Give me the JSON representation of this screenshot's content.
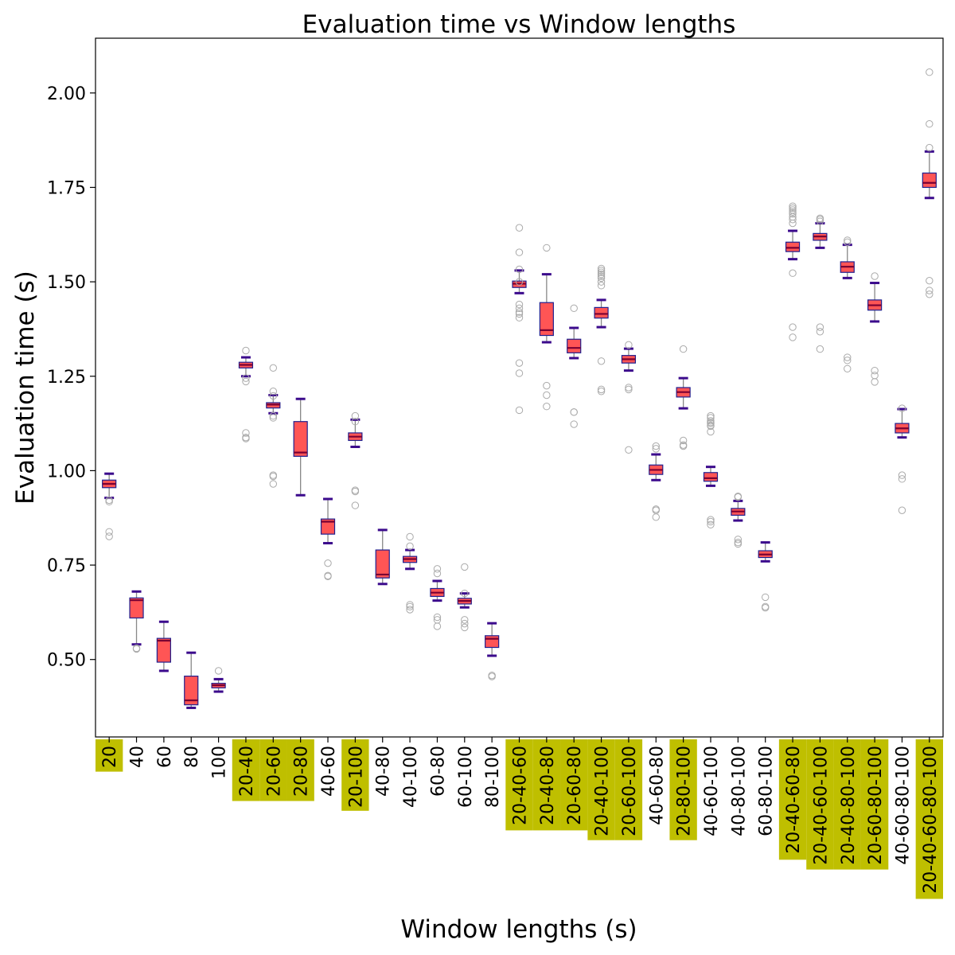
{
  "chart_data": {
    "type": "box",
    "title": "Evaluation time vs Window lengths",
    "xlabel": "Window lengths (s)",
    "ylabel": "Evaluation time (s)",
    "ylim": [
      0.295,
      2.145
    ],
    "yticks": [
      0.5,
      0.75,
      1.0,
      1.25,
      1.5,
      1.75,
      2.0
    ],
    "ytick_labels": [
      "0.50",
      "0.75",
      "1.00",
      "1.25",
      "1.50",
      "1.75",
      "2.00"
    ],
    "grid": false,
    "colors": {
      "box_fill": "#ff5555",
      "box_edge": "#1f1f8f",
      "median": "#7a0033",
      "whisker": "#888888",
      "cap": "#3b0a8c",
      "outlier": "#aaaaaa",
      "highlight": "#bfbf00"
    },
    "categories": [
      "20",
      "40",
      "60",
      "80",
      "100",
      "20-40",
      "20-60",
      "20-80",
      "40-60",
      "20-100",
      "40-80",
      "40-100",
      "60-80",
      "60-100",
      "80-100",
      "20-40-60",
      "20-40-80",
      "20-60-80",
      "20-40-100",
      "20-60-100",
      "40-60-80",
      "20-80-100",
      "40-60-100",
      "40-80-100",
      "60-80-100",
      "20-40-60-80",
      "20-40-60-100",
      "20-40-80-100",
      "20-60-80-100",
      "40-60-80-100",
      "20-40-60-80-100"
    ],
    "highlighted": [
      true,
      false,
      false,
      false,
      false,
      true,
      true,
      true,
      false,
      true,
      false,
      false,
      false,
      false,
      false,
      true,
      true,
      true,
      true,
      true,
      false,
      true,
      false,
      false,
      false,
      true,
      true,
      true,
      true,
      false,
      true
    ],
    "boxes": [
      {
        "whislo": 0.928,
        "q1": 0.955,
        "med": 0.965,
        "q3": 0.975,
        "whishi": 0.992,
        "fliers": [
          0.918,
          0.922,
          0.838,
          0.826
        ]
      },
      {
        "whislo": 0.54,
        "q1": 0.61,
        "med": 0.657,
        "q3": 0.663,
        "whishi": 0.68,
        "fliers": [
          0.528,
          0.53
        ]
      },
      {
        "whislo": 0.47,
        "q1": 0.493,
        "med": 0.55,
        "q3": 0.556,
        "whishi": 0.6,
        "fliers": []
      },
      {
        "whislo": 0.372,
        "q1": 0.38,
        "med": 0.392,
        "q3": 0.456,
        "whishi": 0.518,
        "fliers": []
      },
      {
        "whislo": 0.415,
        "q1": 0.425,
        "med": 0.432,
        "q3": 0.437,
        "whishi": 0.448,
        "fliers": [
          0.47
        ]
      },
      {
        "whislo": 1.25,
        "q1": 1.272,
        "med": 1.28,
        "q3": 1.287,
        "whishi": 1.3,
        "fliers": [
          1.318,
          1.245,
          1.236,
          1.1,
          1.085,
          1.088
        ]
      },
      {
        "whislo": 1.152,
        "q1": 1.166,
        "med": 1.175,
        "q3": 1.18,
        "whishi": 1.2,
        "fliers": [
          1.272,
          1.21,
          1.198,
          1.145,
          1.14,
          0.988,
          0.985,
          0.965
        ]
      },
      {
        "whislo": 0.935,
        "q1": 1.038,
        "med": 1.048,
        "q3": 1.13,
        "whishi": 1.19,
        "fliers": []
      },
      {
        "whislo": 0.808,
        "q1": 0.832,
        "med": 0.865,
        "q3": 0.872,
        "whishi": 0.925,
        "fliers": [
          0.755,
          0.722,
          0.72
        ]
      },
      {
        "whislo": 1.063,
        "q1": 1.08,
        "med": 1.09,
        "q3": 1.1,
        "whishi": 1.135,
        "fliers": [
          1.145,
          1.13,
          0.948,
          0.945,
          0.908
        ]
      },
      {
        "whislo": 0.7,
        "q1": 0.716,
        "med": 0.725,
        "q3": 0.79,
        "whishi": 0.843,
        "fliers": []
      },
      {
        "whislo": 0.74,
        "q1": 0.757,
        "med": 0.766,
        "q3": 0.773,
        "whishi": 0.79,
        "fliers": [
          0.825,
          0.8,
          0.645,
          0.64,
          0.632
        ]
      },
      {
        "whislo": 0.656,
        "q1": 0.667,
        "med": 0.677,
        "q3": 0.688,
        "whishi": 0.708,
        "fliers": [
          0.74,
          0.728,
          0.612,
          0.605,
          0.588
        ]
      },
      {
        "whislo": 0.638,
        "q1": 0.647,
        "med": 0.655,
        "q3": 0.662,
        "whishi": 0.675,
        "fliers": [
          0.745,
          0.675,
          0.605,
          0.595,
          0.585
        ]
      },
      {
        "whislo": 0.51,
        "q1": 0.532,
        "med": 0.555,
        "q3": 0.563,
        "whishi": 0.596,
        "fliers": [
          0.458,
          0.455
        ]
      },
      {
        "whislo": 1.47,
        "q1": 1.485,
        "med": 1.495,
        "q3": 1.502,
        "whishi": 1.53,
        "fliers": [
          1.643,
          1.578,
          1.533,
          1.5,
          1.44,
          1.43,
          1.42,
          1.415,
          1.405,
          1.285,
          1.258,
          1.16
        ]
      },
      {
        "whislo": 1.34,
        "q1": 1.358,
        "med": 1.372,
        "q3": 1.445,
        "whishi": 1.52,
        "fliers": [
          1.59,
          1.225,
          1.2,
          1.17
        ]
      },
      {
        "whislo": 1.298,
        "q1": 1.312,
        "med": 1.325,
        "q3": 1.348,
        "whishi": 1.378,
        "fliers": [
          1.43,
          1.155,
          1.155,
          1.123
        ]
      },
      {
        "whislo": 1.38,
        "q1": 1.404,
        "med": 1.415,
        "q3": 1.432,
        "whishi": 1.452,
        "fliers": [
          1.535,
          1.53,
          1.525,
          1.52,
          1.515,
          1.51,
          1.5,
          1.49,
          1.29,
          1.215,
          1.21
        ]
      },
      {
        "whislo": 1.265,
        "q1": 1.285,
        "med": 1.295,
        "q3": 1.305,
        "whishi": 1.323,
        "fliers": [
          1.333,
          1.22,
          1.215,
          1.055
        ]
      },
      {
        "whislo": 0.975,
        "q1": 0.99,
        "med": 1.002,
        "q3": 1.015,
        "whishi": 1.043,
        "fliers": [
          1.065,
          1.058,
          0.898,
          0.895,
          0.877
        ]
      },
      {
        "whislo": 1.165,
        "q1": 1.195,
        "med": 1.208,
        "q3": 1.22,
        "whishi": 1.245,
        "fliers": [
          1.322,
          1.08,
          1.068,
          1.065
        ]
      },
      {
        "whislo": 0.96,
        "q1": 0.972,
        "med": 0.98,
        "q3": 0.995,
        "whishi": 1.01,
        "fliers": [
          1.145,
          1.14,
          1.132,
          1.128,
          1.125,
          1.12,
          1.118,
          1.103,
          0.87,
          0.865,
          0.857
        ]
      },
      {
        "whislo": 0.868,
        "q1": 0.882,
        "med": 0.892,
        "q3": 0.9,
        "whishi": 0.92,
        "fliers": [
          0.932,
          0.93,
          0.818,
          0.81,
          0.806
        ]
      },
      {
        "whislo": 0.76,
        "q1": 0.77,
        "med": 0.778,
        "q3": 0.788,
        "whishi": 0.81,
        "fliers": [
          0.665,
          0.64,
          0.637
        ]
      },
      {
        "whislo": 1.56,
        "q1": 1.58,
        "med": 1.59,
        "q3": 1.605,
        "whishi": 1.635,
        "fliers": [
          1.7,
          1.695,
          1.69,
          1.685,
          1.68,
          1.672,
          1.665,
          1.655,
          1.523,
          1.38,
          1.353
        ]
      },
      {
        "whislo": 1.59,
        "q1": 1.61,
        "med": 1.62,
        "q3": 1.628,
        "whishi": 1.655,
        "fliers": [
          1.668,
          1.665,
          1.66,
          1.38,
          1.368,
          1.322
        ]
      },
      {
        "whislo": 1.51,
        "q1": 1.525,
        "med": 1.54,
        "q3": 1.553,
        "whishi": 1.598,
        "fliers": [
          1.61,
          1.605,
          1.3,
          1.292,
          1.27
        ]
      },
      {
        "whislo": 1.395,
        "q1": 1.425,
        "med": 1.438,
        "q3": 1.452,
        "whishi": 1.497,
        "fliers": [
          1.515,
          1.265,
          1.252,
          1.235
        ]
      },
      {
        "whislo": 1.088,
        "q1": 1.1,
        "med": 1.112,
        "q3": 1.125,
        "whishi": 1.163,
        "fliers": [
          1.165,
          0.988,
          0.978,
          0.895
        ]
      },
      {
        "whislo": 1.722,
        "q1": 1.75,
        "med": 1.762,
        "q3": 1.788,
        "whishi": 1.845,
        "fliers": [
          2.055,
          1.918,
          1.855,
          1.503,
          1.477,
          1.467
        ]
      }
    ]
  }
}
